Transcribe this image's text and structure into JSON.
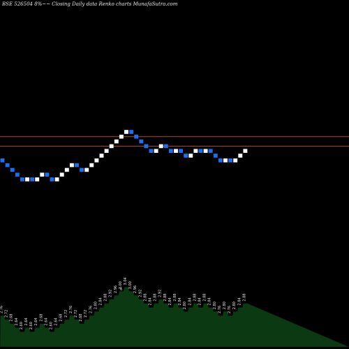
{
  "header": {
    "title": "BSE 526504  8%~~  Closing Daily data  Renko  charts MunafaSutra.com"
  },
  "colors": {
    "background": "#000000",
    "up_brick": "#ffffff",
    "down_brick": "#1e6ef0",
    "level_line": "#b44a1e",
    "volume_fill": "#0b3a12",
    "volume_line": "#0f0f0f",
    "volume_label": "#e6e6e6"
  },
  "chart_data": {
    "type": "renko",
    "bricks": [
      {
        "dir": "down",
        "close": 2.76
      },
      {
        "dir": "down",
        "close": 2.72
      },
      {
        "dir": "down",
        "close": 2.68
      },
      {
        "dir": "down",
        "close": 2.64
      },
      {
        "dir": "down",
        "close": 2.6
      },
      {
        "dir": "up",
        "close": 2.64
      },
      {
        "dir": "down",
        "close": 2.6
      },
      {
        "dir": "up",
        "close": 2.64
      },
      {
        "dir": "up",
        "close": 2.68
      },
      {
        "dir": "down",
        "close": 2.64
      },
      {
        "dir": "down",
        "close": 2.6
      },
      {
        "dir": "up",
        "close": 2.64
      },
      {
        "dir": "up",
        "close": 2.68
      },
      {
        "dir": "up",
        "close": 2.72
      },
      {
        "dir": "up",
        "close": 2.76
      },
      {
        "dir": "down",
        "close": 2.72
      },
      {
        "dir": "down",
        "close": 2.68
      },
      {
        "dir": "up",
        "close": 2.72
      },
      {
        "dir": "up",
        "close": 2.76
      },
      {
        "dir": "up",
        "close": 2.8
      },
      {
        "dir": "up",
        "close": 2.84
      },
      {
        "dir": "up",
        "close": 2.88
      },
      {
        "dir": "up",
        "close": 2.92
      },
      {
        "dir": "up",
        "close": 2.96
      },
      {
        "dir": "up",
        "close": 3.0
      },
      {
        "dir": "up",
        "close": 3.04
      },
      {
        "dir": "down",
        "close": 3.0
      },
      {
        "dir": "down",
        "close": 2.96
      },
      {
        "dir": "down",
        "close": 2.92
      },
      {
        "dir": "down",
        "close": 2.88
      },
      {
        "dir": "down",
        "close": 2.84
      },
      {
        "dir": "up",
        "close": 2.88
      },
      {
        "dir": "up",
        "close": 2.92
      },
      {
        "dir": "down",
        "close": 2.88
      },
      {
        "dir": "down",
        "close": 2.84
      },
      {
        "dir": "up",
        "close": 2.88
      },
      {
        "dir": "down",
        "close": 2.84
      },
      {
        "dir": "down",
        "close": 2.8
      },
      {
        "dir": "up",
        "close": 2.84
      },
      {
        "dir": "up",
        "close": 2.88
      },
      {
        "dir": "down",
        "close": 2.84
      },
      {
        "dir": "up",
        "close": 2.88
      },
      {
        "dir": "down",
        "close": 2.84
      },
      {
        "dir": "down",
        "close": 2.8
      },
      {
        "dir": "down",
        "close": 2.76
      },
      {
        "dir": "up",
        "close": 2.8
      },
      {
        "dir": "down",
        "close": 2.76
      },
      {
        "dir": "up",
        "close": 2.8
      },
      {
        "dir": "up",
        "close": 2.84
      },
      {
        "dir": "up",
        "close": 2.88
      }
    ],
    "ylim": [
      1.6,
      3.4
    ],
    "reference_lines": [
      2.98,
      2.9
    ],
    "volume_labels": [
      "2.76",
      "2.72",
      "2.68",
      "2.64",
      "2.60",
      "2.64",
      "2.60",
      "2.64",
      "2.68",
      "2.64",
      "2.60",
      "2.64",
      "2.68",
      "2.72",
      "2.76",
      "2.72",
      "2.68",
      "2.72",
      "2.76",
      "2.80",
      "2.84",
      "2.88",
      "2.92",
      "2.96",
      "3.00",
      "3.04",
      "3.00",
      "2.96",
      "2.92",
      "2.88",
      "2.84",
      "2.88",
      "2.92",
      "2.88",
      "2.84",
      "2.88",
      "2.84",
      "2.80",
      "2.84",
      "2.88",
      "2.84",
      "2.88",
      "2.84",
      "2.80",
      "2.76",
      "2.80",
      "2.76",
      "2.80",
      "2.84",
      "2.88"
    ],
    "volume_peak_label": "6",
    "grid": false,
    "legend": "none"
  }
}
